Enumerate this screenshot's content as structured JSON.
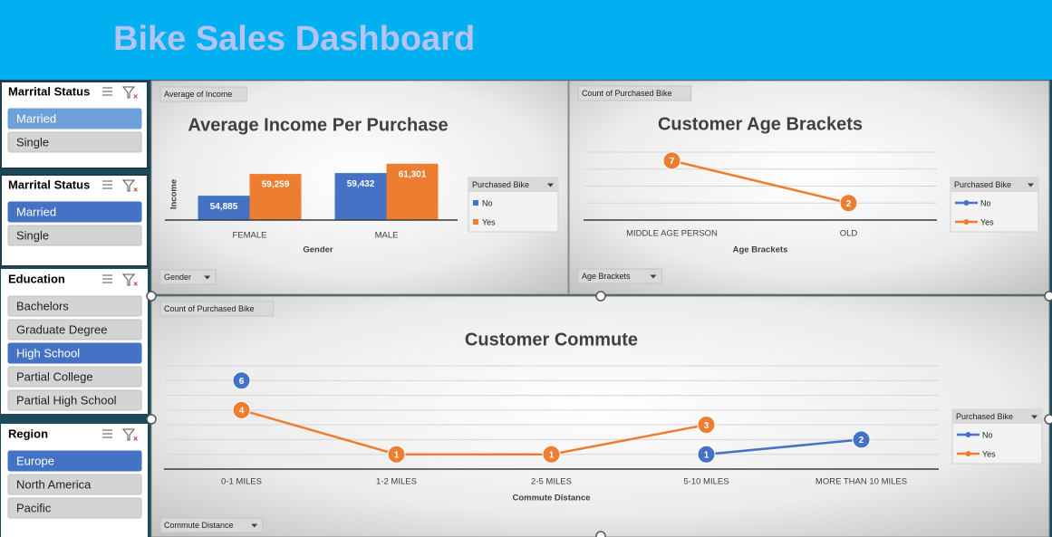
{
  "header": {
    "title": "Bike Sales Dashboard"
  },
  "slicers": [
    {
      "title": "Marrital Status",
      "items": [
        "Married",
        "Single"
      ],
      "selected": [
        0
      ],
      "selected_color": "#6d9fd9"
    },
    {
      "title": "Marrital Status",
      "items": [
        "Married",
        "Single"
      ],
      "selected": [
        0
      ],
      "selected_color": "#4472c4"
    },
    {
      "title": "Education",
      "items": [
        "Bachelors",
        "Graduate Degree",
        "High School",
        "Partial College",
        "Partial High School"
      ],
      "selected": [
        2
      ],
      "selected_color": "#4472c4"
    },
    {
      "title": "Region",
      "items": [
        "Europe",
        "North America",
        "Pacific"
      ],
      "selected": [
        0
      ],
      "selected_color": "#4472c4"
    }
  ],
  "chart_data": [
    {
      "type": "bar",
      "title": "Average Income Per Purchase",
      "field_button": "Average of Income",
      "filter_button": "Gender",
      "x_label": "Gender",
      "y_label": "Income",
      "categories": [
        "FEMALE",
        "MALE"
      ],
      "series": [
        {
          "name": "No",
          "color": "#4472c4",
          "values": [
            54885,
            59432
          ],
          "value_labels": [
            "54,885",
            "59,432"
          ]
        },
        {
          "name": "Yes",
          "color": "#ed7d31",
          "values": [
            59259,
            61301
          ],
          "value_labels": [
            "59,259",
            "61,301"
          ]
        }
      ],
      "ylim": [
        50000,
        64000
      ],
      "legend_title": "Purchased Bike",
      "legend": "right"
    },
    {
      "type": "line",
      "title": "Customer Age Brackets",
      "field_button": "Count of Purchased Bike",
      "filter_button": "Age Brackets",
      "x_label": "Age Brackets",
      "categories": [
        "MIDDLE AGE PERSON",
        "OLD"
      ],
      "series": [
        {
          "name": "No",
          "color": "#4472c4",
          "values": [
            null,
            null
          ]
        },
        {
          "name": "Yes",
          "color": "#ed7d31",
          "values": [
            7,
            2
          ]
        }
      ],
      "ylim": [
        0,
        8
      ],
      "yticks": [
        0,
        2,
        4,
        6,
        8
      ],
      "grid": true,
      "legend_title": "Purchased Bike",
      "legend": "right"
    },
    {
      "type": "line",
      "title": "Customer Commute",
      "field_button": "Count of Purchased Bike",
      "filter_button": "Commute Distance",
      "x_label": "Commute Distance",
      "categories": [
        "0-1 MILES",
        "1-2 MILES",
        "2-5 MILES",
        "5-10 MILES",
        "MORE THAN 10 MILES"
      ],
      "series": [
        {
          "name": "No",
          "color": "#4472c4",
          "values": [
            6,
            null,
            null,
            1,
            2
          ]
        },
        {
          "name": "Yes",
          "color": "#ed7d31",
          "values": [
            4,
            1,
            1,
            3,
            null
          ]
        }
      ],
      "ylim": [
        0,
        7
      ],
      "yticks": [
        0,
        1,
        2,
        3,
        4,
        5,
        6,
        7
      ],
      "grid": true,
      "legend_title": "Purchased Bike",
      "legend": "right"
    }
  ]
}
